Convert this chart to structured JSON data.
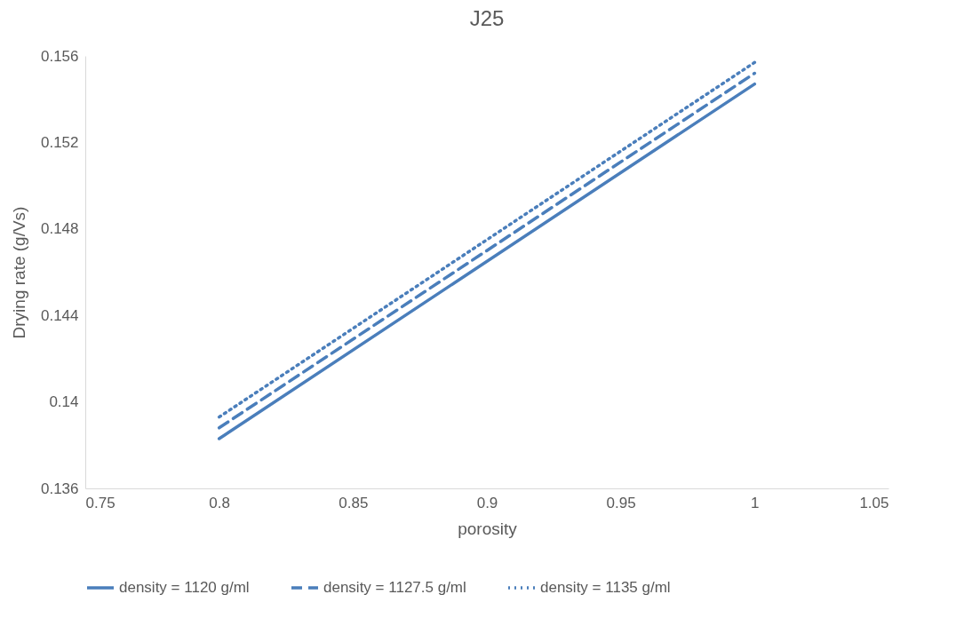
{
  "chart_data": {
    "type": "line",
    "title": "J25",
    "xlabel": "porosity",
    "ylabel": "Drying rate (g/Vs)",
    "x": [
      0.8,
      1
    ],
    "series": [
      {
        "name": "density = 1120 g/ml",
        "color": "#4a7ebb",
        "values": [
          0.1383,
          0.1547
        ],
        "line_style": "solid"
      },
      {
        "name": "density = 1127.5 g/ml",
        "color": "#4a7ebb",
        "values": [
          0.1388,
          0.1552
        ],
        "line_style": "dashed"
      },
      {
        "name": "density = 1135 g/ml",
        "color": "#4a7ebb",
        "values": [
          0.1393,
          0.1557
        ],
        "line_style": "dotted"
      }
    ],
    "xlim": [
      0.75,
      1.05
    ],
    "xticks": [
      0.75,
      0.8,
      0.85,
      0.9,
      0.95,
      1,
      1.05
    ],
    "ylim": [
      0.136,
      0.156
    ],
    "yticks": [
      0.136,
      0.14,
      0.144,
      0.148,
      0.152,
      0.156
    ],
    "grid": false,
    "legend": "bottom",
    "marker": "none"
  }
}
